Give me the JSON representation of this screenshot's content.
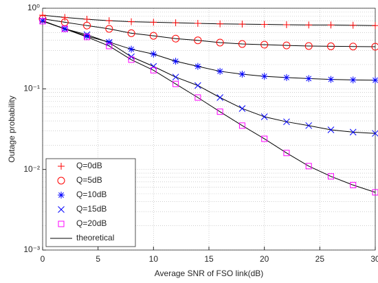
{
  "chart_data": {
    "type": "line",
    "xlabel": "Average SNR of FSO link(dB)",
    "ylabel": "Outage probability",
    "x": [
      0,
      2,
      4,
      6,
      8,
      10,
      12,
      14,
      16,
      18,
      20,
      22,
      24,
      26,
      28,
      30
    ],
    "series": [
      {
        "name": "Q=0dB",
        "color": "#ff0000",
        "marker": "+",
        "values": [
          0.82,
          0.77,
          0.73,
          0.7,
          0.68,
          0.67,
          0.66,
          0.65,
          0.64,
          0.635,
          0.63,
          0.625,
          0.62,
          0.62,
          0.615,
          0.61
        ]
      },
      {
        "name": "Q=5dB",
        "color": "#ff0000",
        "marker": "o",
        "values": [
          0.74,
          0.67,
          0.61,
          0.555,
          0.49,
          0.455,
          0.42,
          0.4,
          0.375,
          0.36,
          0.353,
          0.346,
          0.34,
          0.337,
          0.335,
          0.333
        ]
      },
      {
        "name": "Q=10dB",
        "color": "#0000ff",
        "marker": "*",
        "values": [
          0.7,
          0.555,
          0.45,
          0.38,
          0.31,
          0.27,
          0.22,
          0.19,
          0.165,
          0.152,
          0.143,
          0.138,
          0.134,
          0.131,
          0.129,
          0.128
        ]
      },
      {
        "name": "Q=15dB",
        "color": "#0000ff",
        "marker": "x",
        "values": [
          0.7,
          0.555,
          0.47,
          0.375,
          0.25,
          0.19,
          0.14,
          0.11,
          0.078,
          0.057,
          0.045,
          0.039,
          0.035,
          0.031,
          0.029,
          0.028
        ]
      },
      {
        "name": "Q=20dB",
        "color": "#ff00ff",
        "marker": "s",
        "values": [
          0.69,
          0.555,
          0.44,
          0.34,
          0.23,
          0.17,
          0.115,
          0.078,
          0.052,
          0.035,
          0.024,
          0.016,
          0.011,
          0.0082,
          0.0064,
          0.0052
        ]
      }
    ],
    "theory": {
      "name": "theoretical",
      "color": "#000000"
    },
    "xlim": [
      0,
      30
    ],
    "xticks": [
      0,
      5,
      10,
      15,
      20,
      25,
      30
    ],
    "ylim": [
      0.001,
      1
    ],
    "log_y": true,
    "yticks": [
      {
        "value": 0.001,
        "label": "10⁻³"
      },
      {
        "value": 0.01,
        "label": "10⁻²"
      },
      {
        "value": 0.1,
        "label": "10⁻¹"
      },
      {
        "value": 1,
        "label": "10⁰"
      }
    ],
    "grid": true,
    "legend": "lower left"
  }
}
